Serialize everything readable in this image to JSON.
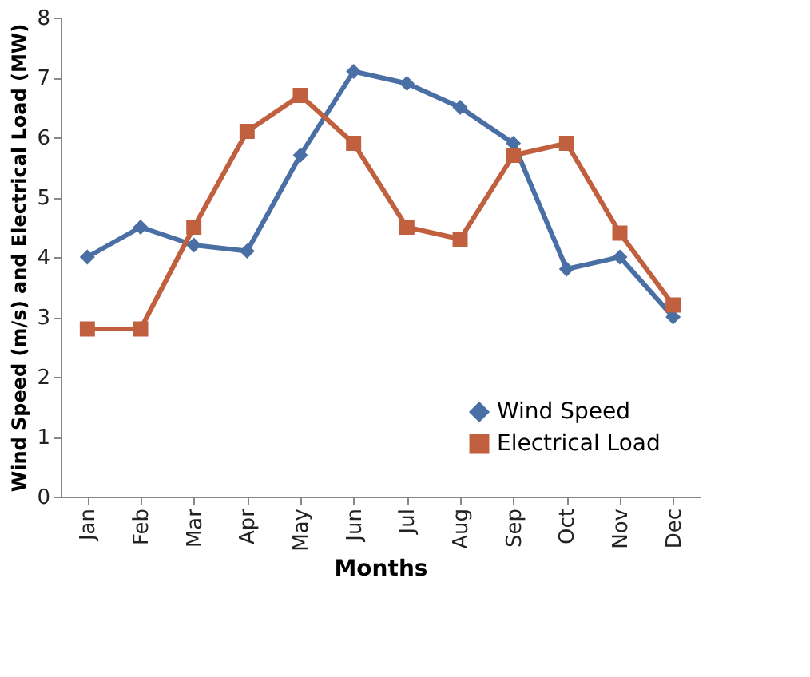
{
  "chart_data": {
    "type": "line",
    "xlabel": "Months",
    "ylabel": "Wind Speed (m/s) and Electrical Load (MW)",
    "categories": [
      "Jan",
      "Feb",
      "Mar",
      "Apr",
      "May",
      "Jun",
      "Jul",
      "Aug",
      "Sep",
      "Oct",
      "Nov",
      "Dec"
    ],
    "series": [
      {
        "name": "Wind Speed",
        "color": "#4a6fa5",
        "marker": "diamond",
        "values": [
          4.0,
          4.5,
          4.2,
          4.1,
          5.7,
          7.1,
          6.9,
          6.5,
          5.9,
          3.8,
          4.0,
          3.0
        ]
      },
      {
        "name": "Electrical Load",
        "color": "#c0603f",
        "marker": "square",
        "values": [
          2.8,
          2.8,
          4.5,
          6.1,
          6.7,
          5.9,
          4.5,
          4.3,
          5.7,
          5.9,
          4.4,
          3.2
        ]
      }
    ],
    "ylim": [
      0,
      8
    ],
    "yticks": [
      0,
      1,
      2,
      3,
      4,
      5,
      6,
      7,
      8
    ],
    "grid": false,
    "legend": "bottom right",
    "line_style": "solid"
  }
}
